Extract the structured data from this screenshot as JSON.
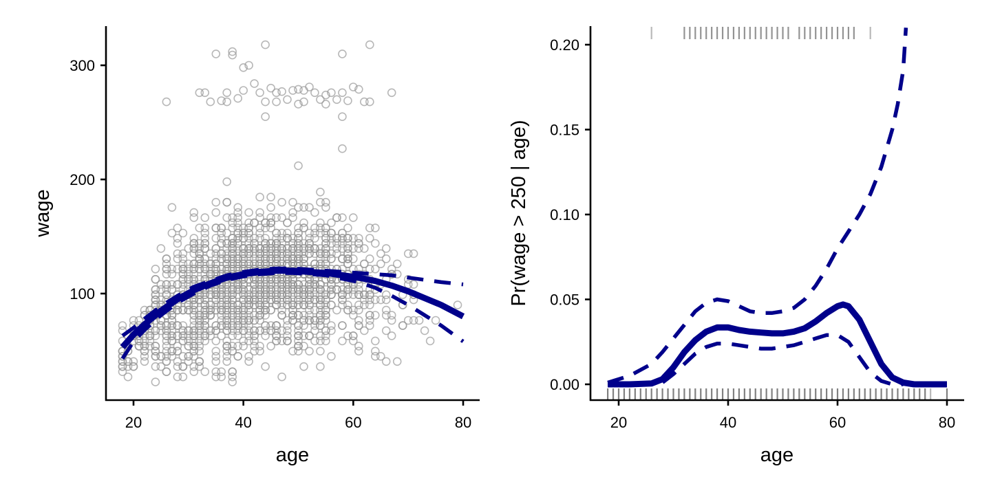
{
  "chart_data": [
    {
      "id": "left",
      "type": "scatter",
      "title": "",
      "xlabel": "age",
      "ylabel": "wage",
      "xlim": [
        15,
        83
      ],
      "ylim": [
        10,
        330
      ],
      "xticks": [
        20,
        40,
        60,
        80
      ],
      "xtick_labels": [
        "20",
        "40",
        "60",
        "80"
      ],
      "yticks": [
        100,
        200,
        300
      ],
      "ytick_labels": [
        "100",
        "200",
        "300"
      ],
      "grid": false,
      "legend": "none",
      "point_color": "#999999",
      "line_color": "#00008B",
      "high_earner_points": [
        [
          35,
          310
        ],
        [
          38,
          312
        ],
        [
          38,
          309
        ],
        [
          44,
          318
        ],
        [
          58,
          310
        ],
        [
          63,
          318
        ],
        [
          33,
          276
        ],
        [
          36,
          269
        ],
        [
          37,
          276
        ],
        [
          39,
          271
        ],
        [
          40,
          278
        ],
        [
          40,
          298
        ],
        [
          41,
          300
        ],
        [
          42,
          284
        ],
        [
          43,
          276
        ],
        [
          44,
          268
        ],
        [
          44,
          255
        ],
        [
          45,
          280
        ],
        [
          46,
          276
        ],
        [
          47,
          277
        ],
        [
          48,
          270
        ],
        [
          49,
          278
        ],
        [
          50,
          279
        ],
        [
          51,
          278
        ],
        [
          51,
          268
        ],
        [
          52,
          281
        ],
        [
          53,
          276
        ],
        [
          54,
          270
        ],
        [
          55,
          274
        ],
        [
          56,
          276
        ],
        [
          57,
          270
        ],
        [
          58,
          276
        ],
        [
          58,
          255
        ],
        [
          59,
          269
        ],
        [
          60,
          281
        ],
        [
          61,
          279
        ],
        [
          62,
          268
        ],
        [
          63,
          268
        ],
        [
          67,
          276
        ],
        [
          26,
          268
        ],
        [
          32,
          276
        ],
        [
          34,
          268
        ],
        [
          37,
          268
        ],
        [
          46,
          268
        ],
        [
          50,
          266
        ],
        [
          55,
          266
        ],
        [
          58,
          227
        ],
        [
          50,
          212
        ]
      ],
      "spline_fit": {
        "x": [
          18,
          20,
          22,
          25,
          28,
          31,
          34,
          37,
          40,
          43,
          46,
          49,
          52,
          55,
          58,
          61,
          64,
          67,
          70,
          73,
          76,
          80
        ],
        "y": [
          53,
          64,
          73,
          85,
          95,
          103,
          109,
          114,
          117,
          119,
          120,
          120,
          119,
          118,
          116,
          114,
          111,
          107,
          102,
          96,
          90,
          80
        ],
        "lower": [
          43,
          58,
          68,
          81,
          92,
          100,
          107,
          112,
          115,
          117,
          118,
          118,
          117,
          116,
          113,
          110,
          105,
          98,
          90,
          81,
          72,
          58
        ],
        "upper": [
          63,
          70,
          78,
          89,
          98,
          106,
          111,
          116,
          119,
          121,
          122,
          122,
          121,
          120,
          119,
          118,
          117,
          116,
          114,
          112,
          110,
          108
        ]
      }
    },
    {
      "id": "right",
      "type": "line",
      "title": "",
      "xlabel": "age",
      "ylabel": "Pr(wage > 250 | age)",
      "xlim": [
        15,
        83
      ],
      "ylim": [
        -0.009,
        0.21
      ],
      "xticks": [
        20,
        40,
        60,
        80
      ],
      "xtick_labels": [
        "20",
        "40",
        "60",
        "80"
      ],
      "yticks": [
        0.0,
        0.05,
        0.1,
        0.15,
        0.2
      ],
      "ytick_labels": [
        "0.00",
        "0.05",
        "0.10",
        "0.15",
        "0.20"
      ],
      "grid": false,
      "legend": "none",
      "line_color": "#00008B",
      "rug_color": "#808080",
      "fit": {
        "x": [
          18,
          22,
          26,
          28,
          30,
          32,
          34,
          36,
          38,
          40,
          42,
          44,
          46,
          48,
          50,
          52,
          54,
          56,
          58,
          60,
          61,
          62,
          64,
          66,
          68,
          70,
          72,
          74,
          76,
          80
        ],
        "y": [
          0.0,
          0.0,
          0.0005,
          0.003,
          0.01,
          0.019,
          0.026,
          0.031,
          0.0335,
          0.0335,
          0.032,
          0.031,
          0.0305,
          0.03,
          0.03,
          0.031,
          0.033,
          0.037,
          0.042,
          0.046,
          0.047,
          0.046,
          0.038,
          0.025,
          0.012,
          0.004,
          0.001,
          0.0,
          0.0,
          0.0
        ]
      },
      "upper": {
        "x": [
          18,
          22,
          26,
          28,
          30,
          32,
          34,
          36,
          38,
          40,
          42,
          44,
          46,
          48,
          50,
          52,
          54,
          56,
          58,
          60,
          62,
          64,
          66,
          68,
          70,
          71,
          72,
          72.5
        ],
        "y": [
          0.001,
          0.005,
          0.012,
          0.019,
          0.027,
          0.035,
          0.043,
          0.048,
          0.05,
          0.049,
          0.046,
          0.043,
          0.042,
          0.042,
          0.043,
          0.045,
          0.05,
          0.058,
          0.068,
          0.08,
          0.09,
          0.1,
          0.112,
          0.128,
          0.15,
          0.165,
          0.185,
          0.21
        ]
      },
      "lower": {
        "x": [
          18,
          22,
          26,
          28,
          30,
          32,
          34,
          36,
          38,
          40,
          42,
          44,
          46,
          48,
          50,
          52,
          54,
          56,
          58,
          60,
          62,
          64,
          66,
          68,
          70,
          72
        ],
        "y": [
          0.0,
          0.0,
          0.0,
          0.001,
          0.006,
          0.012,
          0.018,
          0.022,
          0.024,
          0.024,
          0.023,
          0.022,
          0.021,
          0.021,
          0.022,
          0.023,
          0.025,
          0.027,
          0.029,
          0.029,
          0.025,
          0.016,
          0.007,
          0.002,
          0.0,
          0.0
        ]
      },
      "rug_top_ages": [
        26,
        32,
        33,
        34,
        35,
        36,
        37,
        38,
        39,
        40,
        41,
        42,
        43,
        44,
        45,
        46,
        47,
        48,
        49,
        50,
        51,
        53,
        54,
        55,
        56,
        57,
        58,
        59,
        60,
        61,
        62,
        63,
        66
      ],
      "rug_bottom_ages": [
        18,
        19,
        20,
        21,
        22,
        23,
        24,
        25,
        26,
        27,
        28,
        29,
        30,
        31,
        32,
        33,
        34,
        35,
        36,
        37,
        38,
        39,
        40,
        41,
        42,
        43,
        44,
        45,
        46,
        47,
        48,
        49,
        50,
        51,
        52,
        53,
        54,
        55,
        56,
        57,
        58,
        59,
        60,
        61,
        62,
        63,
        64,
        65,
        66,
        67,
        68,
        69,
        70,
        71,
        72,
        73,
        74,
        75,
        76,
        77,
        80
      ]
    }
  ]
}
